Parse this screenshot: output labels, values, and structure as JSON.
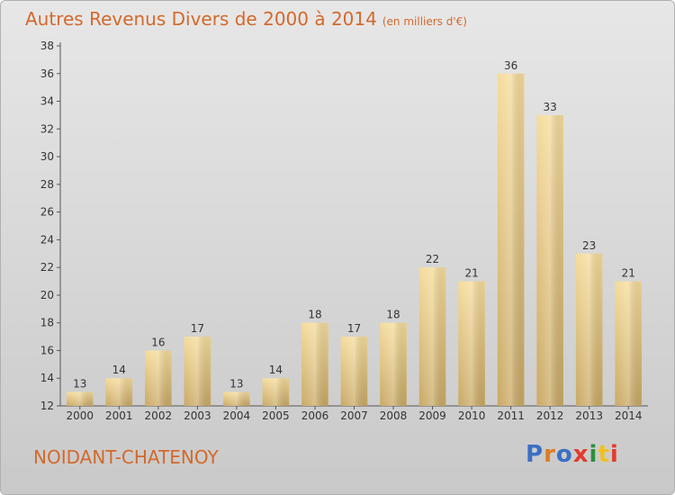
{
  "header": {
    "title": "Autres Revenus Divers de 2000 à 2014",
    "subtitle": "(en milliers d'€)"
  },
  "footer": {
    "location": "NOIDANT-CHATENOY",
    "logo": "Proxiti"
  },
  "colors": {
    "title": "#d3692b",
    "bar_light": "#f5dc9b",
    "bar_dark": "#c9a965",
    "background_top": "#e7e7e7",
    "background_bottom": "#c9c9c9",
    "logo_letters": [
      "#3b6fc4",
      "#e07b22",
      "#3b6fc4",
      "#e23c2e",
      "#2e8f3c",
      "#f0c020",
      "#e23c2e"
    ]
  },
  "chart_data": {
    "type": "bar",
    "title": "Autres Revenus Divers de 2000 à 2014",
    "subtitle": "(en milliers d'€)",
    "categories": [
      "2000",
      "2001",
      "2002",
      "2003",
      "2004",
      "2005",
      "2006",
      "2007",
      "2008",
      "2009",
      "2010",
      "2011",
      "2012",
      "2013",
      "2014"
    ],
    "values": [
      13,
      14,
      16,
      17,
      13,
      14,
      18,
      17,
      18,
      22,
      21,
      36,
      33,
      23,
      21
    ],
    "ylim": [
      12,
      38
    ],
    "yticks": [
      12,
      14,
      16,
      18,
      20,
      22,
      24,
      26,
      28,
      30,
      32,
      34,
      36,
      38
    ],
    "xlabel": "",
    "ylabel": "",
    "grid": false,
    "data_labels": true
  }
}
